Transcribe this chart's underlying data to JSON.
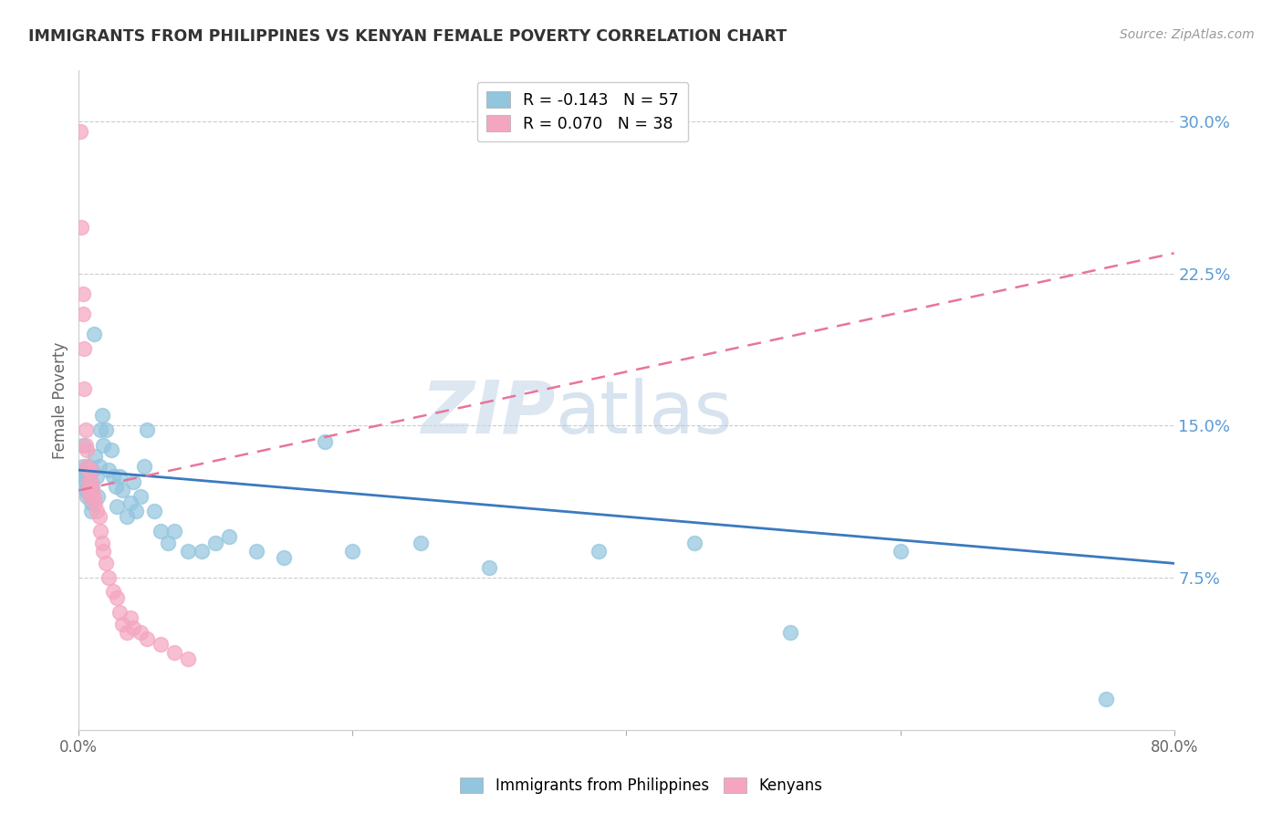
{
  "title": "IMMIGRANTS FROM PHILIPPINES VS KENYAN FEMALE POVERTY CORRELATION CHART",
  "source": "Source: ZipAtlas.com",
  "ylabel": "Female Poverty",
  "ytick_labels": [
    "7.5%",
    "15.0%",
    "22.5%",
    "30.0%"
  ],
  "ytick_values": [
    0.075,
    0.15,
    0.225,
    0.3
  ],
  "xlim": [
    0.0,
    0.8
  ],
  "ylim": [
    0.0,
    0.325
  ],
  "color_blue": "#92c5de",
  "color_pink": "#f4a6c0",
  "trendline_blue_color": "#3a7abf",
  "trendline_pink_color": "#e8759a",
  "philippines_x": [
    0.002,
    0.003,
    0.003,
    0.004,
    0.005,
    0.005,
    0.006,
    0.007,
    0.007,
    0.008,
    0.008,
    0.009,
    0.009,
    0.01,
    0.01,
    0.011,
    0.012,
    0.013,
    0.014,
    0.015,
    0.016,
    0.017,
    0.018,
    0.02,
    0.022,
    0.024,
    0.025,
    0.027,
    0.028,
    0.03,
    0.032,
    0.035,
    0.038,
    0.04,
    0.042,
    0.045,
    0.048,
    0.05,
    0.055,
    0.06,
    0.065,
    0.07,
    0.08,
    0.09,
    0.1,
    0.11,
    0.13,
    0.15,
    0.18,
    0.2,
    0.25,
    0.3,
    0.38,
    0.45,
    0.52,
    0.6,
    0.75
  ],
  "philippines_y": [
    0.125,
    0.14,
    0.13,
    0.128,
    0.122,
    0.118,
    0.115,
    0.125,
    0.13,
    0.118,
    0.122,
    0.112,
    0.108,
    0.12,
    0.128,
    0.195,
    0.135,
    0.125,
    0.115,
    0.13,
    0.148,
    0.155,
    0.14,
    0.148,
    0.128,
    0.138,
    0.125,
    0.12,
    0.11,
    0.125,
    0.118,
    0.105,
    0.112,
    0.122,
    0.108,
    0.115,
    0.13,
    0.148,
    0.108,
    0.098,
    0.092,
    0.098,
    0.088,
    0.088,
    0.092,
    0.095,
    0.088,
    0.085,
    0.142,
    0.088,
    0.092,
    0.08,
    0.088,
    0.092,
    0.048,
    0.088,
    0.015
  ],
  "kenyans_x": [
    0.001,
    0.002,
    0.003,
    0.003,
    0.004,
    0.004,
    0.005,
    0.005,
    0.006,
    0.006,
    0.007,
    0.007,
    0.008,
    0.008,
    0.009,
    0.009,
    0.01,
    0.011,
    0.012,
    0.013,
    0.015,
    0.016,
    0.017,
    0.018,
    0.02,
    0.022,
    0.025,
    0.028,
    0.03,
    0.032,
    0.035,
    0.038,
    0.04,
    0.045,
    0.05,
    0.06,
    0.07,
    0.08
  ],
  "kenyans_y": [
    0.295,
    0.248,
    0.215,
    0.205,
    0.188,
    0.168,
    0.148,
    0.14,
    0.138,
    0.13,
    0.128,
    0.122,
    0.118,
    0.115,
    0.128,
    0.122,
    0.118,
    0.115,
    0.112,
    0.108,
    0.105,
    0.098,
    0.092,
    0.088,
    0.082,
    0.075,
    0.068,
    0.065,
    0.058,
    0.052,
    0.048,
    0.055,
    0.05,
    0.048,
    0.045,
    0.042,
    0.038,
    0.035
  ],
  "phil_trend_x": [
    0.0,
    0.8
  ],
  "phil_trend_y": [
    0.128,
    0.082
  ],
  "ken_trend_x": [
    0.0,
    0.8
  ],
  "ken_trend_y": [
    0.118,
    0.235
  ]
}
